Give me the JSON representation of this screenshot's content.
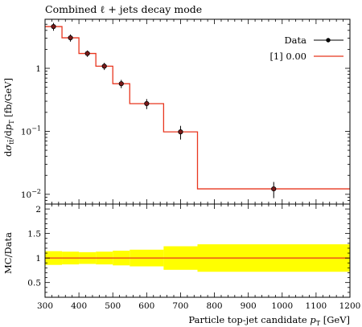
{
  "chart_data": [
    {
      "type": "line",
      "panel": "main",
      "title": "Combined ℓ + jets decay mode",
      "ylabel": "dσtt̄/dpT [fb/GeV]",
      "yscale": "log",
      "ylim": [
        0.007,
        6.0
      ],
      "y_ticks": [
        {
          "value": 0.01,
          "base": "10",
          "exp": "−2"
        },
        {
          "value": 0.1,
          "base": "10",
          "exp": "−1"
        },
        {
          "value": 1,
          "base": "1",
          "exp": ""
        }
      ],
      "xlim": [
        300,
        1200
      ],
      "legend": "top-right",
      "series": [
        {
          "name": "Data",
          "kind": "points",
          "color": "#000000",
          "marker_color": "#7a1a1a",
          "x": [
            325,
            375,
            425,
            475,
            525,
            600,
            700,
            975
          ],
          "y": [
            4.6,
            3.05,
            1.72,
            1.08,
            0.57,
            0.275,
            0.098,
            0.0122
          ],
          "err_lo": [
            0.65,
            0.4,
            0.2,
            0.14,
            0.085,
            0.05,
            0.024,
            0.0035
          ],
          "err_hi": [
            0.65,
            0.4,
            0.2,
            0.14,
            0.085,
            0.05,
            0.024,
            0.0035
          ]
        },
        {
          "name": "[1] 0.00",
          "kind": "histogram",
          "color": "#e8361f",
          "bin_edges": [
            300,
            350,
            400,
            450,
            500,
            550,
            650,
            750,
            1200
          ],
          "values": [
            4.6,
            3.05,
            1.72,
            1.08,
            0.57,
            0.275,
            0.098,
            0.0122
          ]
        }
      ]
    },
    {
      "type": "line",
      "panel": "ratio",
      "ylabel": "MC/Data",
      "xlabel": "Particle top-jet candidate pT [GeV]",
      "ylim": [
        0.2,
        2.1
      ],
      "y_ticks": [
        0.5,
        1,
        1.5,
        2
      ],
      "y_tick_labels": [
        "0.5",
        "1",
        "1.5",
        "2"
      ],
      "xlim": [
        300,
        1200
      ],
      "x_ticks": [
        300,
        400,
        500,
        600,
        700,
        800,
        900,
        1000,
        1100,
        1200
      ],
      "x_tick_labels": [
        "300",
        "400",
        "500",
        "600",
        "700",
        "800",
        "900",
        "1000",
        "1100",
        "1200"
      ],
      "band_color": "#ffff00",
      "band": {
        "bin_edges": [
          300,
          350,
          400,
          450,
          500,
          550,
          650,
          750,
          1200
        ],
        "lo": [
          0.86,
          0.87,
          0.88,
          0.87,
          0.85,
          0.83,
          0.76,
          0.72
        ],
        "hi": [
          1.14,
          1.13,
          1.12,
          1.13,
          1.15,
          1.17,
          1.24,
          1.28
        ]
      },
      "series": [
        {
          "name": "[1] 0.00",
          "color": "#e8361f",
          "bin_edges": [
            300,
            350,
            400,
            450,
            500,
            550,
            650,
            750,
            1200
          ],
          "values": [
            1,
            1,
            1,
            1,
            1,
            1,
            1,
            1
          ]
        }
      ]
    }
  ]
}
